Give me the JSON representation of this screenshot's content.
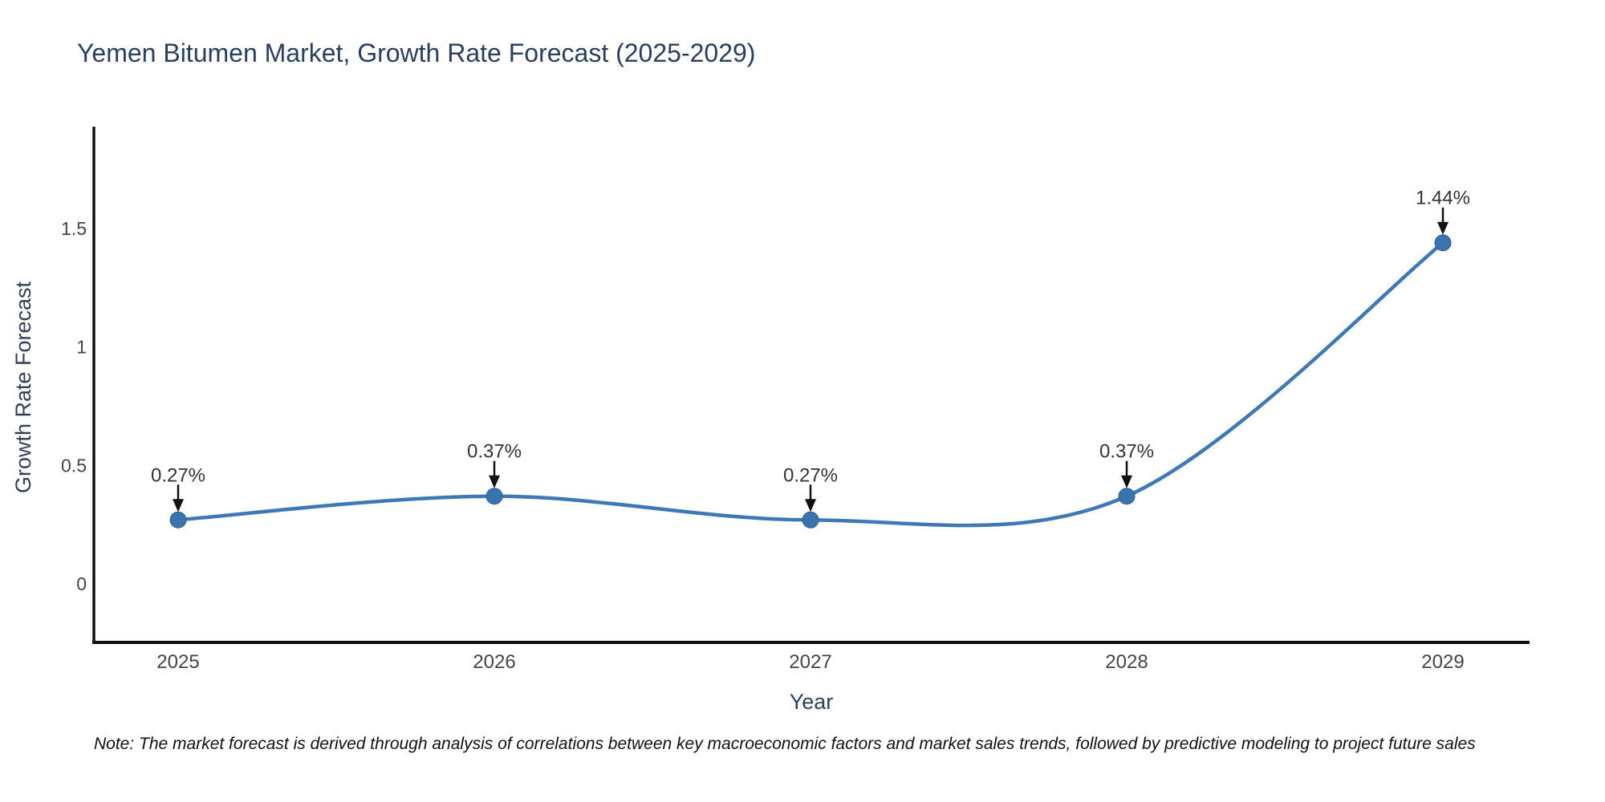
{
  "chart_data": {
    "type": "line",
    "title": "Yemen Bitumen Market, Growth Rate Forecast (2025-2029)",
    "xlabel": "Year",
    "ylabel": "Growth Rate Forecast",
    "categories": [
      "2025",
      "2026",
      "2027",
      "2028",
      "2029"
    ],
    "series": [
      {
        "name": "Growth Rate Forecast",
        "values": [
          0.27,
          0.37,
          0.27,
          0.37,
          1.44
        ],
        "point_labels": [
          "0.27%",
          "0.37%",
          "0.27%",
          "0.37%",
          "1.44%"
        ]
      }
    ],
    "yticks": [
      0,
      0.5,
      1,
      1.5
    ],
    "ylim": [
      -0.25,
      1.92
    ],
    "line_shape": "spline",
    "grid": "off",
    "legend": "none",
    "colors": {
      "line": "#3e79b6",
      "marker": "#3a74b0",
      "marker_edge": "#2d5f8f",
      "axis_line": "#111111",
      "tick_label": "#444444",
      "title": "#2a3f5f",
      "axis_title": "#2f3f55",
      "annotation_text": "#333333",
      "arrow": "#111111"
    },
    "note": "Note: The market forecast is derived through analysis of correlations between key macroeconomic factors and market sales trends, followed by predictive modeling to project future sales"
  }
}
